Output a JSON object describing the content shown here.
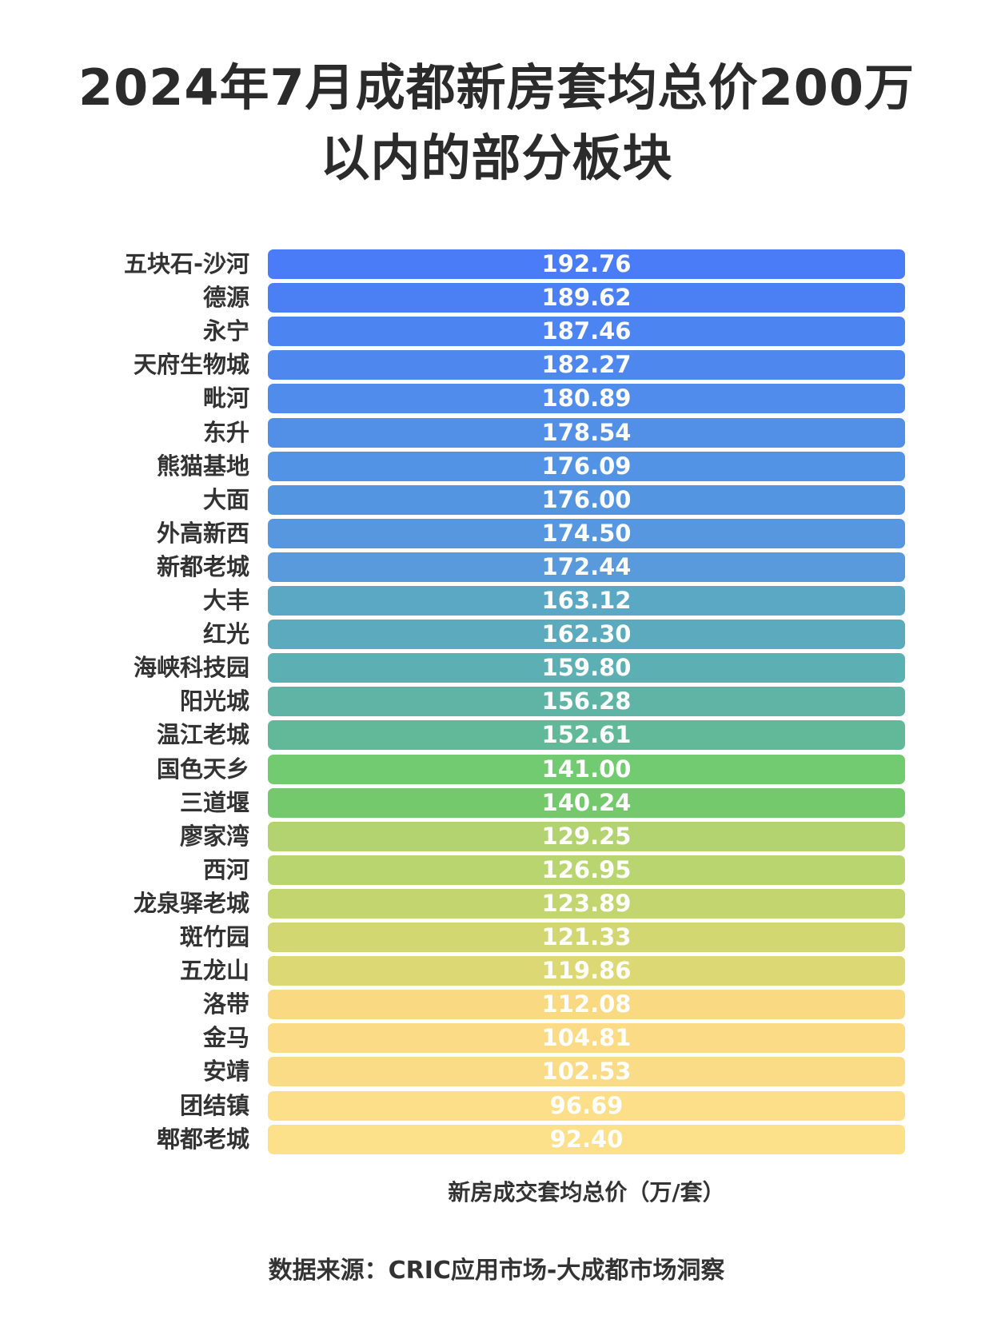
{
  "chart_data": {
    "type": "bar",
    "orientation": "horizontal",
    "title": "2024年7月成都新房套均总价200万以内的部分板块",
    "title_lines": [
      "2024年7月成都新房套均总价200万",
      "以内的部分板块"
    ],
    "xlabel": "新房成交套均总价（万/套）",
    "source": "数据来源：CRIC应用市场-大成都市场洞察",
    "grid": false,
    "categories": [
      "五块石-沙河",
      "德源",
      "永宁",
      "天府生物城",
      "毗河",
      "东升",
      "熊猫基地",
      "大面",
      "外高新西",
      "新都老城",
      "大丰",
      "红光",
      "海峡科技园",
      "阳光城",
      "温江老城",
      "国色天乡",
      "三道堰",
      "廖家湾",
      "西河",
      "龙泉驿老城",
      "斑竹园",
      "五龙山",
      "洛带",
      "金马",
      "安靖",
      "团结镇",
      "郫都老城"
    ],
    "values": [
      "192.76",
      "189.62",
      "187.46",
      "182.27",
      "180.89",
      "178.54",
      "176.09",
      "176.00",
      "174.50",
      "172.44",
      "163.12",
      "162.30",
      "159.80",
      "156.28",
      "152.61",
      "141.00",
      "140.24",
      "129.25",
      "126.95",
      "123.89",
      "121.33",
      "119.86",
      "112.08",
      "104.81",
      "102.53",
      "96.69",
      "92.40"
    ],
    "colors": [
      "#4a7cf8",
      "#4b80f5",
      "#4c84f2",
      "#4e88ef",
      "#508ceb",
      "#5290e8",
      "#5393e5",
      "#5495e2",
      "#5697df",
      "#589adb",
      "#5aa8c4",
      "#5baabd",
      "#5cafb3",
      "#5fb4a6",
      "#62b99a",
      "#72cb71",
      "#74c96d",
      "#b2d36f",
      "#b9d56f",
      "#c3d56f",
      "#d2d772",
      "#dcd873",
      "#fad983",
      "#fbdb85",
      "#fbdc86",
      "#fcdf88",
      "#fde08a"
    ]
  }
}
